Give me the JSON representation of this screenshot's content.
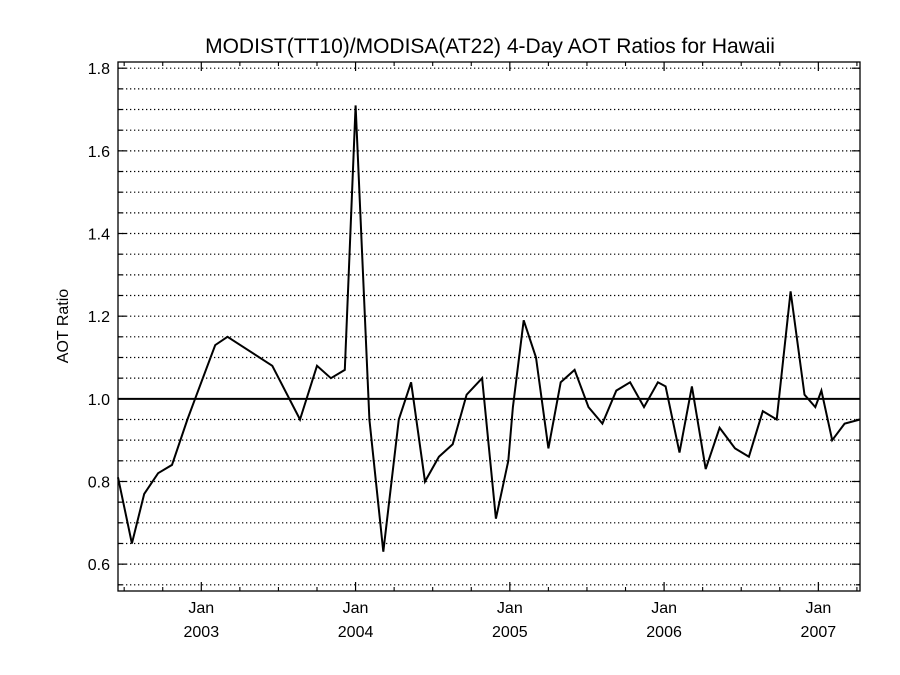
{
  "chart_data": {
    "type": "line",
    "title": "MODIST(TT10)/MODISA(AT22) 4-Day AOT Ratios for Hawaii",
    "xlabel": "",
    "ylabel": "AOT Ratio",
    "xlim": [
      2002.46,
      2007.27
    ],
    "ylim": [
      0.535,
      1.815
    ],
    "x_ticks": [
      {
        "x": 2003.0,
        "month": "Jan",
        "year": "2003"
      },
      {
        "x": 2004.0,
        "month": "Jan",
        "year": "2004"
      },
      {
        "x": 2005.0,
        "month": "Jan",
        "year": "2005"
      },
      {
        "x": 2006.0,
        "month": "Jan",
        "year": "2006"
      },
      {
        "x": 2007.0,
        "month": "Jan",
        "year": "2007"
      }
    ],
    "y_ticks": [
      "0.6",
      "0.8",
      "1.0",
      "1.2",
      "1.4",
      "1.6",
      "1.8"
    ],
    "reference_line": 1.0,
    "grid": {
      "horizontal": true,
      "style": "dotted",
      "step": 0.05
    },
    "series": [
      {
        "x": [
          2002.46,
          2002.55,
          2002.63,
          2002.72,
          2002.81,
          2002.91,
          2002.96,
          2003.09,
          2003.17,
          2003.46,
          2003.64,
          2003.75,
          2003.84,
          2003.93,
          2004.0,
          2004.09,
          2004.18,
          2004.28,
          2004.36,
          2004.45,
          2004.54,
          2004.63,
          2004.72,
          2004.82,
          2004.91,
          2004.99,
          2005.02,
          2005.09,
          2005.17,
          2005.25,
          2005.33,
          2005.42,
          2005.51,
          2005.6,
          2005.69,
          2005.78,
          2005.87,
          2005.96,
          2006.01,
          2006.1,
          2006.18,
          2006.27,
          2006.36,
          2006.46,
          2006.55,
          2006.64,
          2006.73,
          2006.82,
          2006.91,
          2006.98,
          2007.02,
          2007.09,
          2007.17,
          2007.27
        ],
        "y": [
          0.81,
          0.65,
          0.77,
          0.82,
          0.84,
          0.95,
          1.0,
          1.13,
          1.15,
          1.08,
          0.95,
          1.08,
          1.05,
          1.07,
          1.71,
          0.95,
          0.63,
          0.95,
          1.04,
          0.8,
          0.86,
          0.89,
          1.01,
          1.05,
          0.71,
          0.85,
          0.98,
          1.19,
          1.1,
          0.88,
          1.04,
          1.07,
          0.98,
          0.94,
          1.02,
          1.04,
          0.98,
          1.04,
          1.03,
          0.87,
          1.03,
          0.83,
          0.93,
          0.88,
          0.86,
          0.97,
          0.95,
          1.26,
          1.01,
          0.98,
          1.02,
          0.9,
          0.94,
          0.95
        ]
      }
    ]
  }
}
